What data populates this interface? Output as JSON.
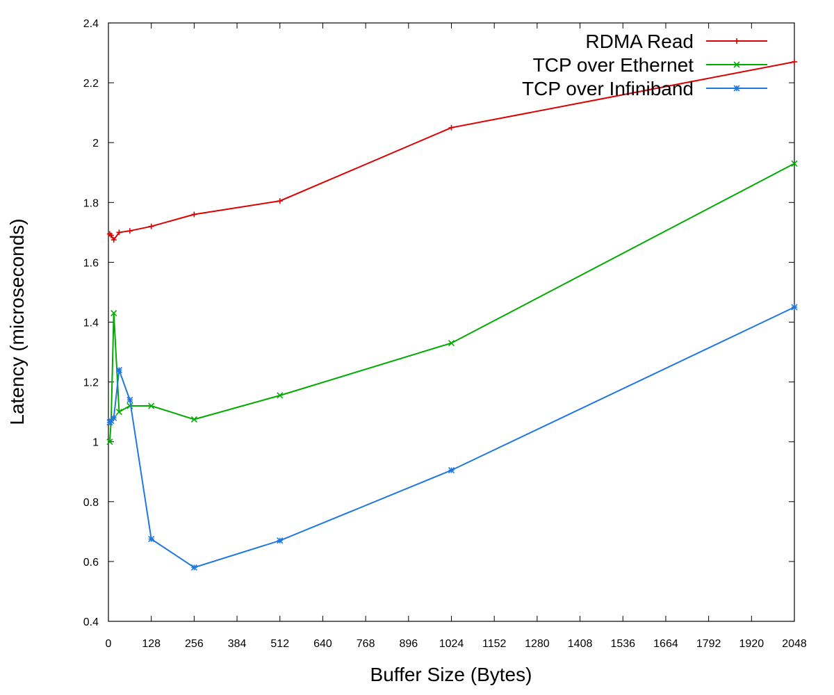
{
  "chart_data": {
    "type": "line",
    "title": "",
    "xlabel": "Buffer Size (Bytes)",
    "ylabel": "Latency (microseconds)",
    "xlim": [
      0,
      2048
    ],
    "ylim": [
      0.4,
      2.4
    ],
    "xticks": [
      0,
      128,
      256,
      384,
      512,
      640,
      768,
      896,
      1024,
      1152,
      1280,
      1408,
      1536,
      1664,
      1792,
      1920,
      2048
    ],
    "yticks": [
      0.4,
      0.6,
      0.8,
      1,
      1.2,
      1.4,
      1.6,
      1.8,
      2,
      2.2,
      2.4
    ],
    "grid": false,
    "legend_position": "top-right",
    "series": [
      {
        "name": "RDMA Read",
        "color": "#dd0000",
        "marker": "plus",
        "x": [
          4,
          8,
          16,
          32,
          64,
          128,
          256,
          512,
          1024,
          2048
        ],
        "y": [
          1.695,
          1.69,
          1.675,
          1.7,
          1.705,
          1.72,
          1.76,
          1.805,
          2.05,
          2.27
        ]
      },
      {
        "name": "TCP over Ethernet",
        "color": "#00aa00",
        "marker": "cross",
        "x": [
          4,
          8,
          16,
          32,
          64,
          128,
          256,
          512,
          1024,
          2048
        ],
        "y": [
          1.0,
          1.07,
          1.43,
          1.1,
          1.12,
          1.12,
          1.075,
          1.155,
          1.33,
          1.93
        ]
      },
      {
        "name": "TCP over Infiniband",
        "color": "#1f77e0",
        "marker": "star",
        "x": [
          4,
          8,
          16,
          32,
          64,
          128,
          256,
          512,
          1024,
          2048
        ],
        "y": [
          1.065,
          1.07,
          1.08,
          1.24,
          1.14,
          0.675,
          0.58,
          0.67,
          0.905,
          1.45
        ]
      }
    ]
  }
}
